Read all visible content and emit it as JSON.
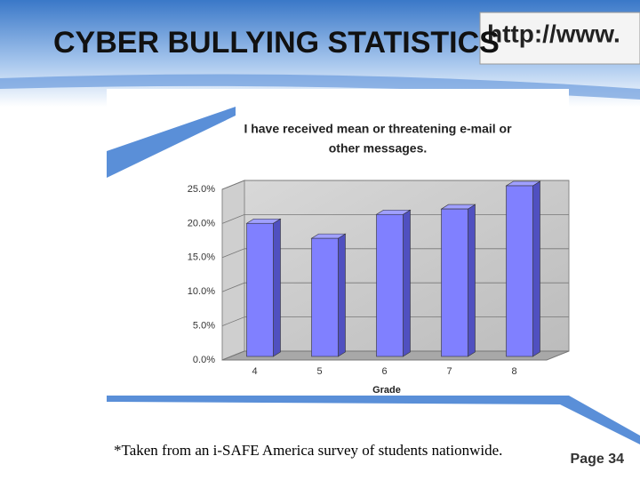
{
  "slide": {
    "title": "CYBER BULLYING STATISTICS",
    "logo_text": "http://www.",
    "footnote": "*Taken from an i-SAFE America survey of students nationwide.",
    "page": "Page 34"
  },
  "chart_data": {
    "type": "bar",
    "title": [
      "I have received mean or threatening e-mail or",
      "other messages."
    ],
    "x_label": "Grade",
    "categories": [
      "4",
      "5",
      "6",
      "7",
      "8"
    ],
    "values": [
      19.5,
      17.3,
      20.8,
      21.6,
      25.0
    ],
    "color": "#8080ff",
    "ylim": [
      0,
      25
    ],
    "yticks": [
      {
        "value": 0,
        "label": "0.0%"
      },
      {
        "value": 5,
        "label": "5.0%"
      },
      {
        "value": 10,
        "label": "10.0%"
      },
      {
        "value": 15,
        "label": "15.0%"
      },
      {
        "value": 20,
        "label": "20.0%"
      },
      {
        "value": 25,
        "label": "25.0%"
      }
    ],
    "grid": true
  }
}
